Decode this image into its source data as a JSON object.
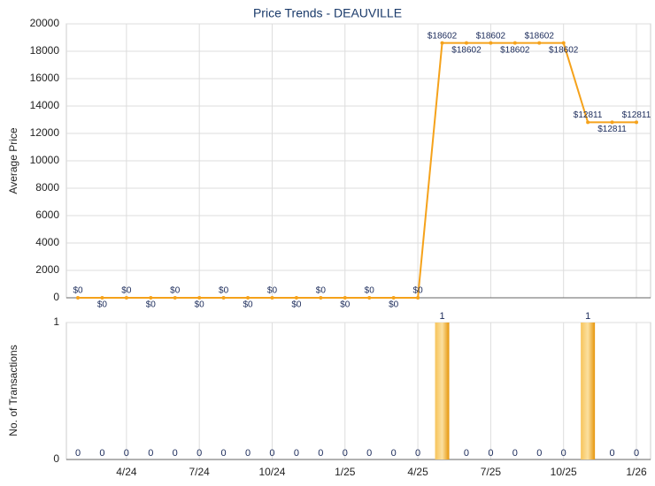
{
  "chart_data": [
    {
      "type": "line",
      "title": "Price Trends - DEAUVILLE",
      "y_label": "Average Price",
      "series": [
        {
          "name": "Average Price",
          "color": "#f5a21b",
          "values": [
            0,
            0,
            0,
            0,
            0,
            0,
            0,
            0,
            0,
            0,
            0,
            0,
            0,
            0,
            0,
            18602,
            18602,
            18602,
            18602,
            18602,
            18602,
            12811,
            12811,
            12811
          ],
          "value_labels": [
            "$0",
            "$0",
            "$0",
            "$0",
            "$0",
            "$0",
            "$0",
            "$0",
            "$0",
            "$0",
            "$0",
            "$0",
            "$0",
            "$0",
            "$0",
            "$18602",
            "$18602",
            "$18602",
            "$18602",
            "$18602",
            "$18602",
            "$12811",
            "$12811",
            "$12811"
          ]
        }
      ],
      "ylim": [
        0,
        20000
      ],
      "yticks": [
        0,
        2000,
        4000,
        6000,
        8000,
        10000,
        12000,
        14000,
        16000,
        18000,
        20000
      ],
      "grid": true
    },
    {
      "type": "bar",
      "y_label": "No. of Transactions",
      "categories": [
        null,
        null,
        "4/24",
        null,
        null,
        "7/24",
        null,
        null,
        "10/24",
        null,
        null,
        "1/25",
        null,
        null,
        "4/25",
        null,
        null,
        "7/25",
        null,
        null,
        "10/25",
        null,
        null,
        "1/26"
      ],
      "series": [
        {
          "name": "No. of Transactions",
          "color": "#f0a318",
          "values": [
            0,
            0,
            0,
            0,
            0,
            0,
            0,
            0,
            0,
            0,
            0,
            0,
            0,
            0,
            0,
            1,
            0,
            0,
            0,
            0,
            0,
            1,
            0,
            0
          ]
        }
      ],
      "ylim": [
        0,
        1
      ],
      "yticks": [
        0,
        1
      ],
      "grid": true
    }
  ]
}
